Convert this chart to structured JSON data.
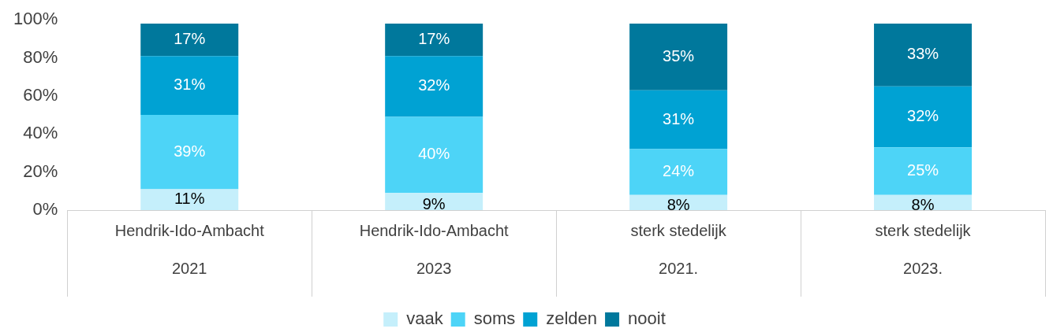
{
  "chart_data": {
    "type": "bar",
    "stacked": true,
    "categories": [
      "Hendrik-Ido-Ambacht\n2021",
      "Hendrik-Ido-Ambacht\n2023",
      "sterk stedelijk\n2021.",
      "sterk stedelijk\n2023."
    ],
    "series": [
      {
        "name": "vaak",
        "color": "#c5effb",
        "values": [
          11,
          9,
          8,
          8
        ],
        "value_labels": [
          "11%",
          "9%",
          "8%",
          "8%"
        ]
      },
      {
        "name": "soms",
        "color": "#4dd4f7",
        "values": [
          39,
          40,
          24,
          25
        ],
        "value_labels": [
          "39%",
          "40%",
          "24%",
          "25%"
        ]
      },
      {
        "name": "zelden",
        "color": "#00a2d3",
        "values": [
          31,
          32,
          31,
          32
        ],
        "value_labels": [
          "31%",
          "32%",
          "31%",
          "32%"
        ]
      },
      {
        "name": "nooit",
        "color": "#00789c",
        "values": [
          17,
          17,
          35,
          33
        ],
        "value_labels": [
          "17%",
          "17%",
          "35%",
          "33%"
        ]
      }
    ],
    "ylim": [
      0,
      100
    ],
    "yticks": [
      {
        "value": 0,
        "label": "0%"
      },
      {
        "value": 20,
        "label": "20%"
      },
      {
        "value": 40,
        "label": "40%"
      },
      {
        "value": 60,
        "label": "60%"
      },
      {
        "value": 80,
        "label": "80%"
      },
      {
        "value": 100,
        "label": "100%"
      }
    ],
    "grid": false,
    "legend": "bottom"
  }
}
